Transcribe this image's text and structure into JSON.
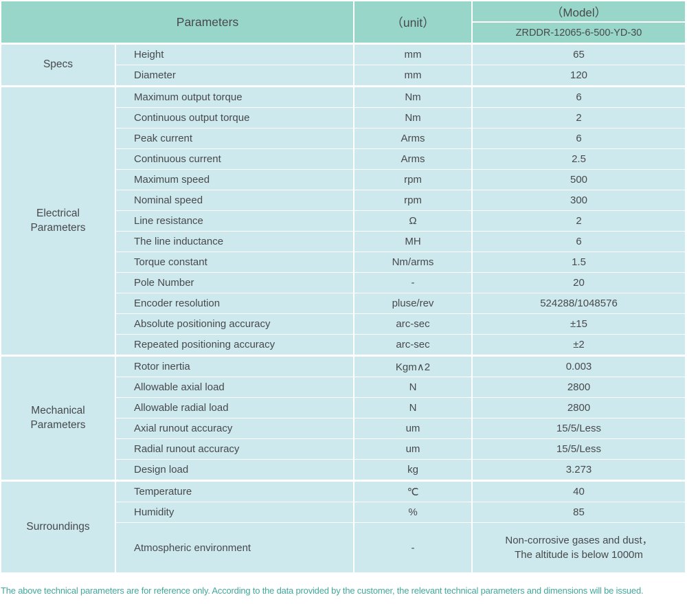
{
  "table": {
    "header": {
      "parameters_label": "Parameters",
      "unit_label": "（unit）",
      "model_label": "（Model）",
      "model_value": "ZRDDR-12065-6-500-YD-30"
    },
    "sections": [
      {
        "label": "Specs",
        "rows": [
          {
            "name": "Height",
            "unit": "mm",
            "value": "65"
          },
          {
            "name": "Diameter",
            "unit": "mm",
            "value": "120"
          }
        ]
      },
      {
        "label": "Electrical Parameters",
        "rows": [
          {
            "name": "Maximum output torque",
            "unit": "Nm",
            "value": "6"
          },
          {
            "name": "Continuous output torque",
            "unit": "Nm",
            "value": "2"
          },
          {
            "name": "Peak current",
            "unit": "Arms",
            "value": "6"
          },
          {
            "name": "Continuous current",
            "unit": "Arms",
            "value": "2.5"
          },
          {
            "name": "Maximum speed",
            "unit": "rpm",
            "value": "500"
          },
          {
            "name": "Nominal speed",
            "unit": "rpm",
            "value": "300"
          },
          {
            "name": "Line resistance",
            "unit": "Ω",
            "value": "2"
          },
          {
            "name": "The line inductance",
            "unit": "MH",
            "value": "6"
          },
          {
            "name": "Torque constant",
            "unit": "Nm/arms",
            "value": "1.5"
          },
          {
            "name": "Pole Number",
            "unit": "-",
            "value": "20"
          },
          {
            "name": "Encoder resolution",
            "unit": "pluse/rev",
            "value": "524288/1048576"
          },
          {
            "name": "Absolute positioning accuracy",
            "unit": "arc-sec",
            "value": "±15"
          },
          {
            "name": "Repeated positioning accuracy",
            "unit": "arc-sec",
            "value": "±2"
          }
        ]
      },
      {
        "label": "Mechanical Parameters",
        "rows": [
          {
            "name": "Rotor inertia",
            "unit": "Kgm∧2",
            "value": "0.003"
          },
          {
            "name": "Allowable axial load",
            "unit": "N",
            "value": "2800"
          },
          {
            "name": "Allowable radial load",
            "unit": "N",
            "value": "2800"
          },
          {
            "name": "Axial runout accuracy",
            "unit": "um",
            "value": "15/5/Less"
          },
          {
            "name": "Radial runout accuracy",
            "unit": "um",
            "value": "15/5/Less"
          },
          {
            "name": "Design load",
            "unit": "kg",
            "value": "3.273"
          }
        ]
      },
      {
        "label": "Surroundings",
        "rows": [
          {
            "name": "Temperature",
            "unit": "℃",
            "value": "40"
          },
          {
            "name": "Humidity",
            "unit": "%",
            "value": "85"
          },
          {
            "name": "Atmospheric environment",
            "unit": "-",
            "value": "Non-corrosive gases and dust，\nThe altitude is below 1000m",
            "tall": true
          }
        ]
      }
    ]
  },
  "footer": {
    "note": "The above technical parameters are for reference only. According to the data provided by the customer, the relevant technical parameters and dimensions will be issued."
  },
  "colors": {
    "header_bg": "#98d6ca",
    "row_bg": "#cde9ee",
    "grid_line": "#ffffff",
    "cell_text": "#47494b",
    "footer_text": "#42a89c"
  }
}
